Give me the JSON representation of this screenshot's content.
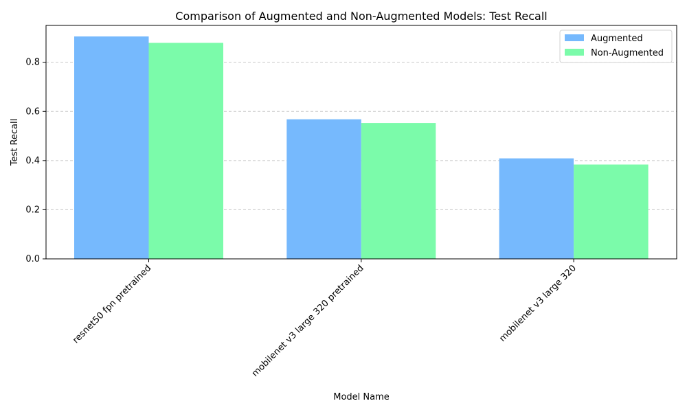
{
  "chart_data": {
    "type": "bar",
    "title": "Comparison of Augmented and Non-Augmented Models: Test Recall",
    "xlabel": "Model Name",
    "ylabel": "Test Recall",
    "categories": [
      "resnet50 fpn pretrained",
      "mobilenet v3 large 320 pretrained",
      "mobilenet v3 large 320"
    ],
    "series": [
      {
        "name": "Augmented",
        "color": "#76b9fd",
        "values": [
          0.905,
          0.568,
          0.409
        ]
      },
      {
        "name": "Non-Augmented",
        "color": "#7bfbaa",
        "values": [
          0.879,
          0.553,
          0.384
        ]
      }
    ],
    "ylim": [
      0,
      0.95
    ],
    "yticks": [
      0.0,
      0.2,
      0.4,
      0.6,
      0.8
    ],
    "ytick_labels": [
      "0.0",
      "0.2",
      "0.4",
      "0.6",
      "0.8"
    ],
    "grid": "y-dashed",
    "legend_position": "top-right"
  }
}
